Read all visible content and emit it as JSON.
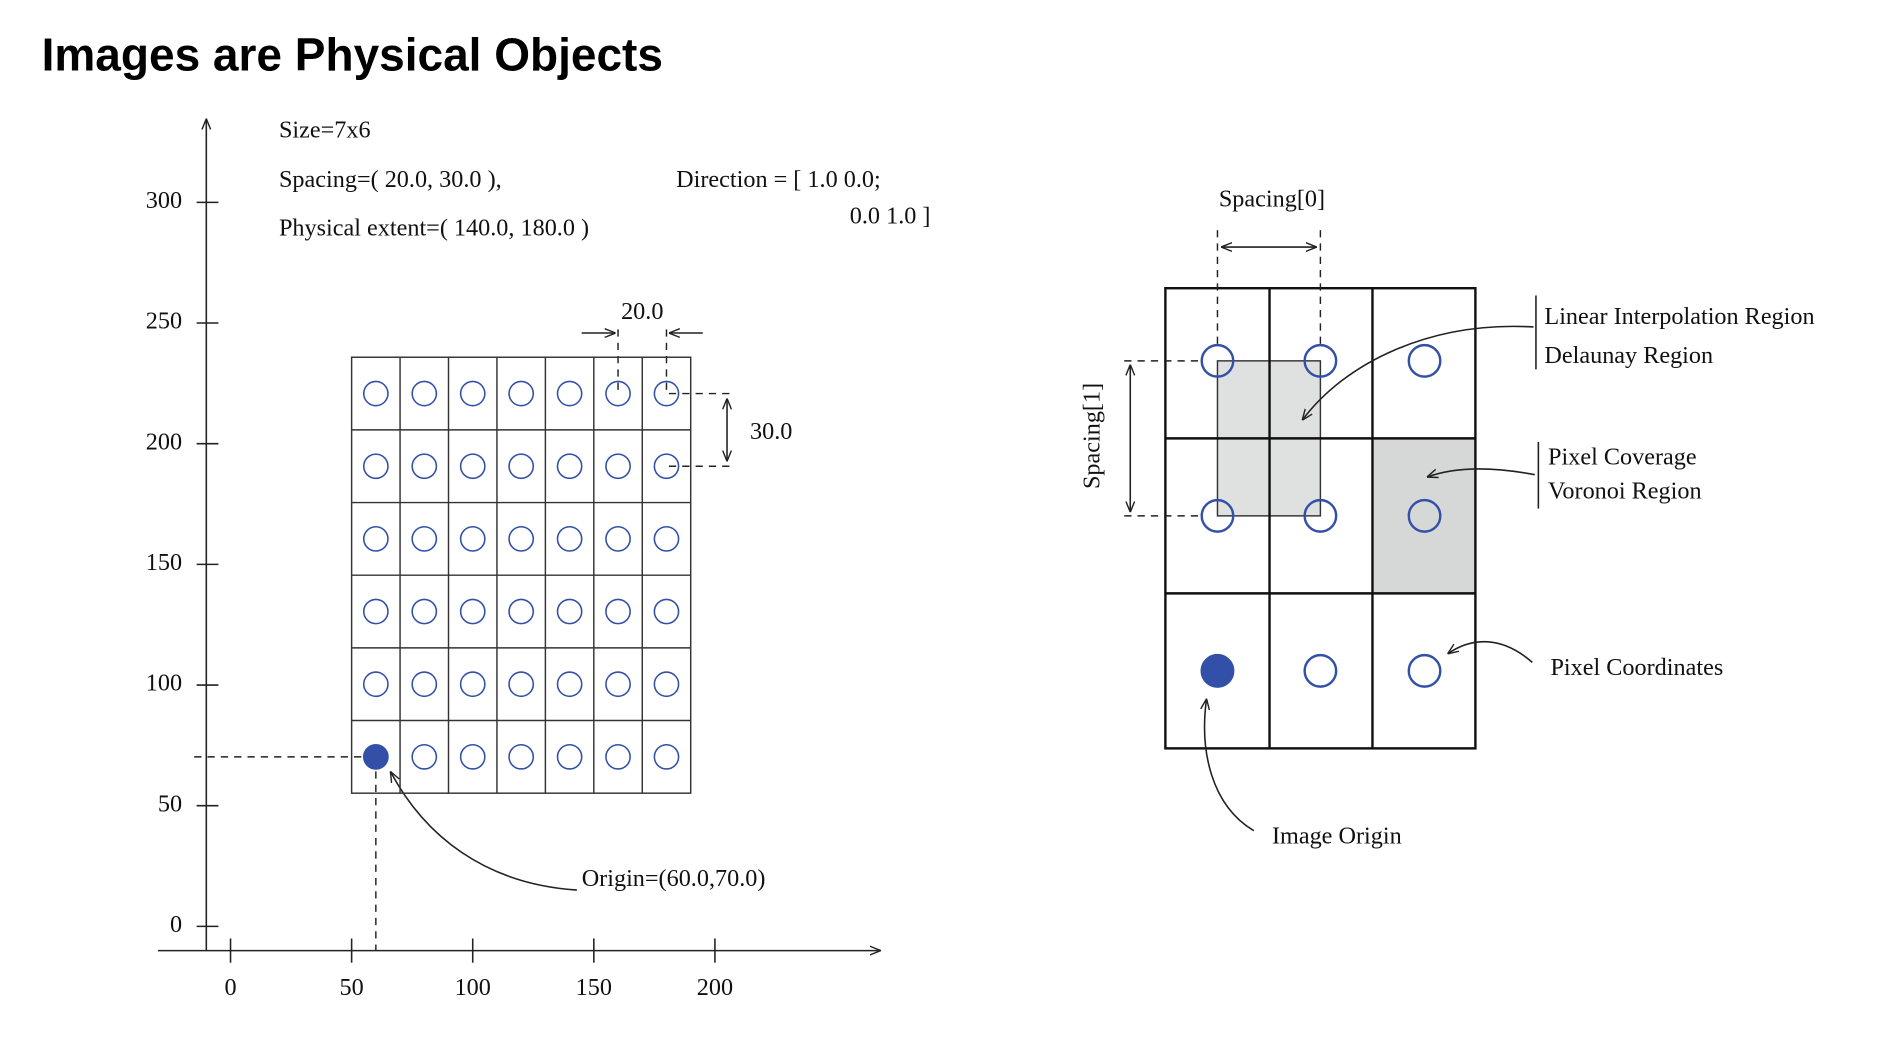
{
  "title": "Images are Physical Objects",
  "left": {
    "x_ticks": [
      0,
      50,
      100,
      150,
      200
    ],
    "y_ticks": [
      0,
      50,
      100,
      150,
      200,
      250,
      300
    ],
    "size": "Size=7x6",
    "spacing": "Spacing=( 20.0, 30.0 ),",
    "direction": [
      "Direction = [ 1.0 0.0;",
      "0.0 1.0 ]"
    ],
    "extent": "Physical extent=( 140.0, 180.0 )",
    "spacing_x": "20.0",
    "spacing_y": "30.0",
    "origin": "Origin=(60.0,70.0)"
  },
  "right": {
    "spacing_0": "Spacing[0]",
    "spacing_1": "Spacing[1]",
    "linear": "Linear Interpolation Region",
    "delaunay": "Delaunay Region",
    "coverage": "Pixel Coverage",
    "voronoi": "Voronoi Region",
    "coordinates": "Pixel Coordinates",
    "image_origin": "Image Origin"
  }
}
